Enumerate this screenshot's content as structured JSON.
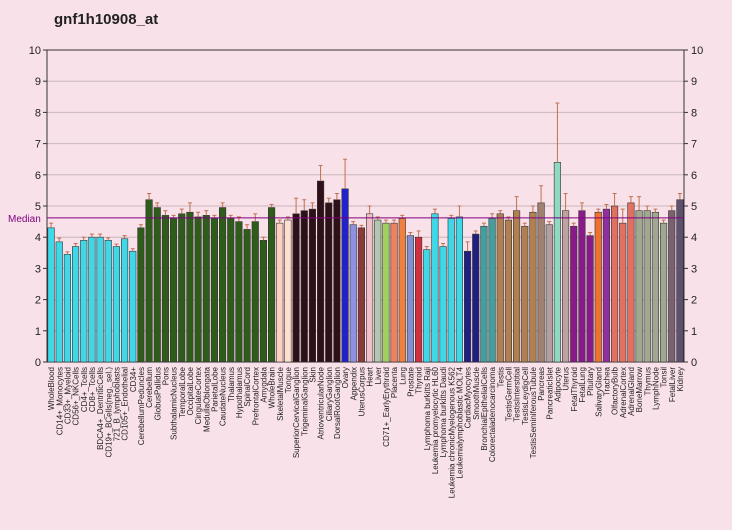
{
  "chart_data": {
    "type": "bar",
    "title": "gnf1h10908_at",
    "median": 4.62,
    "median_label": "Median",
    "ylim": [
      0,
      10
    ],
    "yticks": [
      0,
      1,
      2,
      3,
      4,
      5,
      6,
      7,
      8,
      9,
      10
    ],
    "grid": true,
    "categories": [
      "WholeBlood",
      "CD14+_Monocytes",
      "CD33+_Myeloid",
      "CD56+_NKCells",
      "CD4+_Tcells",
      "CD8+_Tcells",
      "BDCA4+_DentriticCells",
      "CD19+_BCells(neg._sel.)",
      "721_B_lymphoblasts",
      "CD105+_Endothelial",
      "CD34+",
      "CerebellumPeduncles",
      "Cerebellum",
      "GlobusPallidus",
      "Pons",
      "SubthalamicNucleus",
      "TemporalLobe",
      "OccipitalLobe",
      "CingulateCortex",
      "MedullaOblongata",
      "ParietalLobe",
      "CaudateNucleus",
      "Thalamus",
      "Hypothalamus",
      "SpinalCord",
      "PrefrontalCortex",
      "Amygdala",
      "WholeBrain",
      "SkeletalMuscle",
      "Tongue",
      "SuperiorCervicalGanglion",
      "TrigeminalGanglion",
      "Skin",
      "AtrioventricularNode",
      "CiliaryGanglion",
      "DorsalRootGanglion",
      "Ovary",
      "Appendix",
      "UterusCorpus",
      "Heart",
      "Liver",
      "CD71+_EarlyErythroid",
      "Placenta",
      "Lung",
      "Prostate",
      "Thyroid",
      "Lymphoma burkitts Raji",
      "Leukemia promyelocytic HL60",
      "Lymphoma burkitts Daudi",
      "Leukemia chronicMyelogenous K562",
      "Leukemialymphoblastic MOLT4",
      "CardiacMyocytes",
      "SmoothMuscle",
      "BronchialEpithelialCells",
      "Colorectaladenocarcinoma",
      "Testis",
      "TestisGermCell",
      "TestisInterstitial",
      "TestisLeydigCell",
      "TestisSeminiferousTubule",
      "Pancreas",
      "PancreaticIslet",
      "Adipocyte",
      "Uterus",
      "FetalThyroid",
      "FetalLung",
      "Pituitary",
      "SalivaryGland",
      "Trachea",
      "OlfactoryBulb",
      "AdrenalCortex",
      "AdrenalGland",
      "BoneMarrow",
      "Thymus",
      "LymphNode",
      "Tonsil",
      "FetalLiver",
      "Kidney"
    ],
    "values": [
      4.3,
      3.85,
      3.45,
      3.7,
      3.9,
      4.0,
      4.0,
      3.9,
      3.7,
      3.95,
      3.55,
      4.3,
      5.2,
      4.95,
      4.7,
      4.6,
      4.75,
      4.8,
      4.65,
      4.7,
      4.6,
      4.95,
      4.6,
      4.5,
      4.25,
      4.5,
      3.9,
      4.95,
      4.45,
      4.55,
      4.75,
      4.85,
      4.9,
      5.8,
      5.1,
      5.2,
      5.55,
      4.4,
      4.3,
      4.75,
      4.55,
      4.45,
      4.45,
      4.6,
      4.05,
      4.0,
      3.6,
      4.75,
      3.7,
      4.6,
      4.65,
      3.55,
      4.1,
      4.35,
      4.6,
      4.75,
      4.55,
      4.85,
      4.35,
      4.8,
      5.1,
      4.4,
      6.4,
      4.85,
      4.35,
      4.85,
      4.05,
      4.8,
      4.9,
      5.0,
      4.45,
      5.1,
      4.85,
      4.85,
      4.8,
      4.45,
      4.85,
      5.2
    ],
    "errors": [
      0.15,
      0.12,
      0.08,
      0.1,
      0.1,
      0.1,
      0.1,
      0.08,
      0.08,
      0.1,
      0.08,
      0.1,
      0.2,
      0.15,
      0.15,
      0.1,
      0.15,
      0.3,
      0.15,
      0.15,
      0.1,
      0.15,
      0.1,
      0.15,
      0.15,
      0.25,
      0.1,
      0.1,
      0.1,
      0.1,
      0.5,
      0.35,
      0.2,
      0.5,
      0.15,
      0.2,
      0.95,
      0.1,
      0.08,
      0.25,
      0.1,
      0.1,
      0.1,
      0.1,
      0.1,
      0.2,
      0.1,
      0.15,
      0.1,
      0.1,
      0.35,
      0.3,
      0.1,
      0.1,
      0.15,
      0.1,
      0.1,
      0.45,
      0.1,
      0.2,
      0.55,
      0.1,
      1.9,
      0.55,
      0.1,
      0.25,
      0.1,
      0.1,
      0.15,
      0.4,
      0.45,
      0.2,
      0.45,
      0.15,
      0.1,
      0.1,
      0.15,
      0.2
    ],
    "colors": [
      "#3fd8e8",
      "#3fd8e8",
      "#3fd8e8",
      "#3fd8e8",
      "#3fd8e8",
      "#3fd8e8",
      "#3fd8e8",
      "#3fd8e8",
      "#3fd8e8",
      "#3fd8e8",
      "#3fd8e8",
      "#2e5c1a",
      "#2e5c1a",
      "#2e5c1a",
      "#2e5c1a",
      "#2e5c1a",
      "#2e5c1a",
      "#2e5c1a",
      "#2e5c1a",
      "#2e5c1a",
      "#2e5c1a",
      "#2e5c1a",
      "#2e5c1a",
      "#2e5c1a",
      "#2e5c1a",
      "#2e5c1a",
      "#2e5c1a",
      "#2e5c1a",
      "#ffd0c0",
      "#ffe0d0",
      "#301018",
      "#301018",
      "#301018",
      "#301018",
      "#301018",
      "#301018",
      "#2222cc",
      "#9090e0",
      "#8b3a3a",
      "#f0c0c8",
      "#b0c8b0",
      "#a0d060",
      "#f08060",
      "#f08040",
      "#8090d0",
      "#d03040",
      "#3fd8e8",
      "#3fd8e8",
      "#3fd8e8",
      "#3fd8e8",
      "#3fd8e8",
      "#202080",
      "#202080",
      "#40a0a0",
      "#40a0a0",
      "#b08050",
      "#b08050",
      "#b08050",
      "#b08050",
      "#b08050",
      "#a08070",
      "#b0a0a0",
      "#90d8c0",
      "#c0a0a0",
      "#8a1a8a",
      "#8a1a8a",
      "#8a1a8a",
      "#f07030",
      "#9030a0",
      "#e07060",
      "#e07060",
      "#e07060",
      "#a0a890",
      "#a0a890",
      "#a0a890",
      "#a0a890",
      "#7a6070",
      "#605070"
    ]
  }
}
